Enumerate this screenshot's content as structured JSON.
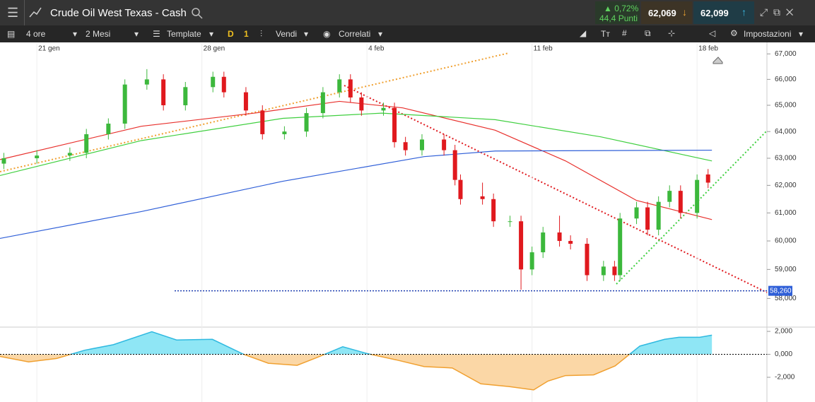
{
  "header": {
    "title": "Crude Oil West Texas - Cash",
    "change": "▲ 0,72%",
    "points": "44,4 Punti",
    "sell": "62,069",
    "buy": "62,099"
  },
  "toolbar": {
    "interval": "4 ore",
    "range": "2 Mesi",
    "template": "Template",
    "d": "D",
    "one": "1",
    "sell": "Vendi",
    "correlated": "Correlati",
    "text_tool": "Tт",
    "settings": "Impostazioni"
  },
  "chart_data": [
    {
      "type": "candlestick",
      "log_scale": true,
      "xlim": [
        -6.7,
        132.7
      ],
      "xticks": [
        {
          "value": 0,
          "label": "21 gen"
        },
        {
          "value": 30,
          "label": "28 gen"
        },
        {
          "value": 60,
          "label": "4 feb"
        },
        {
          "value": 90,
          "label": "11 feb"
        },
        {
          "value": 120,
          "label": "18 feb"
        }
      ],
      "ylim": [
        57050,
        67400
      ],
      "yticks": [
        {
          "value": 58000,
          "label": "58,000"
        },
        {
          "value": 59000,
          "label": "59,000"
        },
        {
          "value": 60000,
          "label": "60,000"
        },
        {
          "value": 61000,
          "label": "61,000"
        },
        {
          "value": 62000,
          "label": "62,000"
        },
        {
          "value": 63000,
          "label": "63,000"
        },
        {
          "value": 64000,
          "label": "64,000"
        },
        {
          "value": 65000,
          "label": "65,000"
        },
        {
          "value": 66000,
          "label": "66,000"
        },
        {
          "value": 67000,
          "label": "67,000"
        }
      ],
      "up_color": "#3cb83c",
      "down_color": "#e0191e",
      "x": [
        -6,
        0,
        6,
        9,
        13,
        16,
        20,
        23,
        27,
        32,
        34,
        38,
        41,
        45,
        49,
        52,
        55,
        57,
        59,
        63,
        65,
        67,
        70,
        74,
        76,
        77,
        81,
        83,
        86,
        88,
        90,
        92,
        95,
        97,
        100,
        103,
        105,
        106,
        109,
        111,
        113,
        115,
        117,
        120,
        122
      ],
      "open": [
        62800,
        63000,
        63100,
        63200,
        63900,
        64300,
        65800,
        66000,
        65000,
        65700,
        66100,
        65500,
        64800,
        63900,
        64000,
        64700,
        65500,
        66000,
        65300,
        64800,
        64900,
        63600,
        63300,
        63700,
        63300,
        62200,
        61600,
        61500,
        60700,
        60700,
        59000,
        59600,
        60300,
        60000,
        59900,
        58800,
        59100,
        58800,
        60800,
        61200,
        60400,
        61400,
        61800,
        61000,
        62400
      ],
      "high": [
        63200,
        63300,
        63400,
        64100,
        64500,
        66000,
        66400,
        66200,
        65900,
        66300,
        66300,
        65700,
        65000,
        64200,
        64900,
        65700,
        66200,
        66200,
        65500,
        65100,
        65100,
        63800,
        63900,
        63900,
        63500,
        62400,
        62100,
        61700,
        60900,
        60900,
        59800,
        60500,
        60900,
        60200,
        60100,
        59300,
        59300,
        61000,
        61400,
        61400,
        61600,
        62000,
        62000,
        62400,
        62600
      ],
      "low": [
        62600,
        62800,
        62900,
        63000,
        63700,
        64100,
        65600,
        64800,
        64800,
        65500,
        65300,
        64600,
        63700,
        63700,
        63800,
        64500,
        65300,
        65100,
        64600,
        64600,
        63400,
        63100,
        63100,
        63100,
        62000,
        61300,
        61300,
        60500,
        60500,
        58300,
        58800,
        59400,
        59800,
        59700,
        58600,
        58600,
        58600,
        58600,
        60600,
        60200,
        60200,
        61200,
        60800,
        60800,
        61900
      ],
      "close": [
        63000,
        63100,
        63200,
        63900,
        64300,
        65800,
        66000,
        65000,
        65700,
        66100,
        65500,
        64800,
        63900,
        64000,
        64700,
        65500,
        66000,
        65300,
        64800,
        64900,
        63600,
        63300,
        63700,
        63300,
        62200,
        61500,
        61500,
        60700,
        60700,
        59000,
        59600,
        60300,
        60000,
        59900,
        58800,
        59100,
        58800,
        60800,
        61200,
        60400,
        61400,
        61800,
        61000,
        62200,
        62100
      ],
      "series": [
        {
          "color": "#e8302c",
          "x": [
            -6.7,
            19,
            39.6,
            55,
            66.5,
            83.3,
            96.1,
            109,
            122.7
          ],
          "values": [
            62950,
            64200,
            64700,
            65150,
            64900,
            64050,
            62900,
            61450,
            60760
          ]
        },
        {
          "color": "#3fcf3f",
          "x": [
            -6.7,
            19,
            44.7,
            62.7,
            83.3,
            102.5,
            122.7
          ],
          "values": [
            62360,
            63660,
            64500,
            64700,
            64450,
            63800,
            62900
          ]
        },
        {
          "color": "#2f5fd8",
          "x": [
            -6.7,
            19,
            44.7,
            70.4,
            83.3,
            122.7
          ],
          "values": [
            60090,
            61050,
            62150,
            63060,
            63270,
            63300
          ]
        }
      ],
      "level": {
        "value": 58260,
        "label": "58,260",
        "color": "#1f3fb0"
      }
    },
    {
      "type": "area",
      "xlim": [
        -6.7,
        132.7
      ],
      "ylim": [
        -3.6,
        2.25
      ],
      "yticks": [
        {
          "value": 2,
          "label": "2,000"
        },
        {
          "value": 0,
          "label": "0,000"
        },
        {
          "value": -2,
          "label": "-2,000"
        }
      ],
      "pos_color": "#8fe6f5",
      "neg_color": "#fbd7a6",
      "pos_line": "#2fb9e0",
      "neg_line": "#f0a030",
      "x": [
        -6.7,
        -1.5,
        3.6,
        8.7,
        13.9,
        20.9,
        25.4,
        31.9,
        37.6,
        42.1,
        47.3,
        51.1,
        55.6,
        60.1,
        65.3,
        70.4,
        75.5,
        80.7,
        85.8,
        90.3,
        92.9,
        96.1,
        101.2,
        105.1,
        109.6,
        114.1,
        116.7,
        120.5,
        122.7
      ],
      "values": [
        -0.18,
        -0.66,
        -0.36,
        0.36,
        0.84,
        1.97,
        1.25,
        1.31,
        0,
        -0.78,
        -0.96,
        -0.24,
        0.66,
        0.06,
        -0.48,
        -1.07,
        -1.19,
        -2.57,
        -2.81,
        -3.1,
        -2.33,
        -1.85,
        -1.79,
        -1.01,
        0.72,
        1.31,
        1.49,
        1.49,
        1.67
      ]
    }
  ]
}
